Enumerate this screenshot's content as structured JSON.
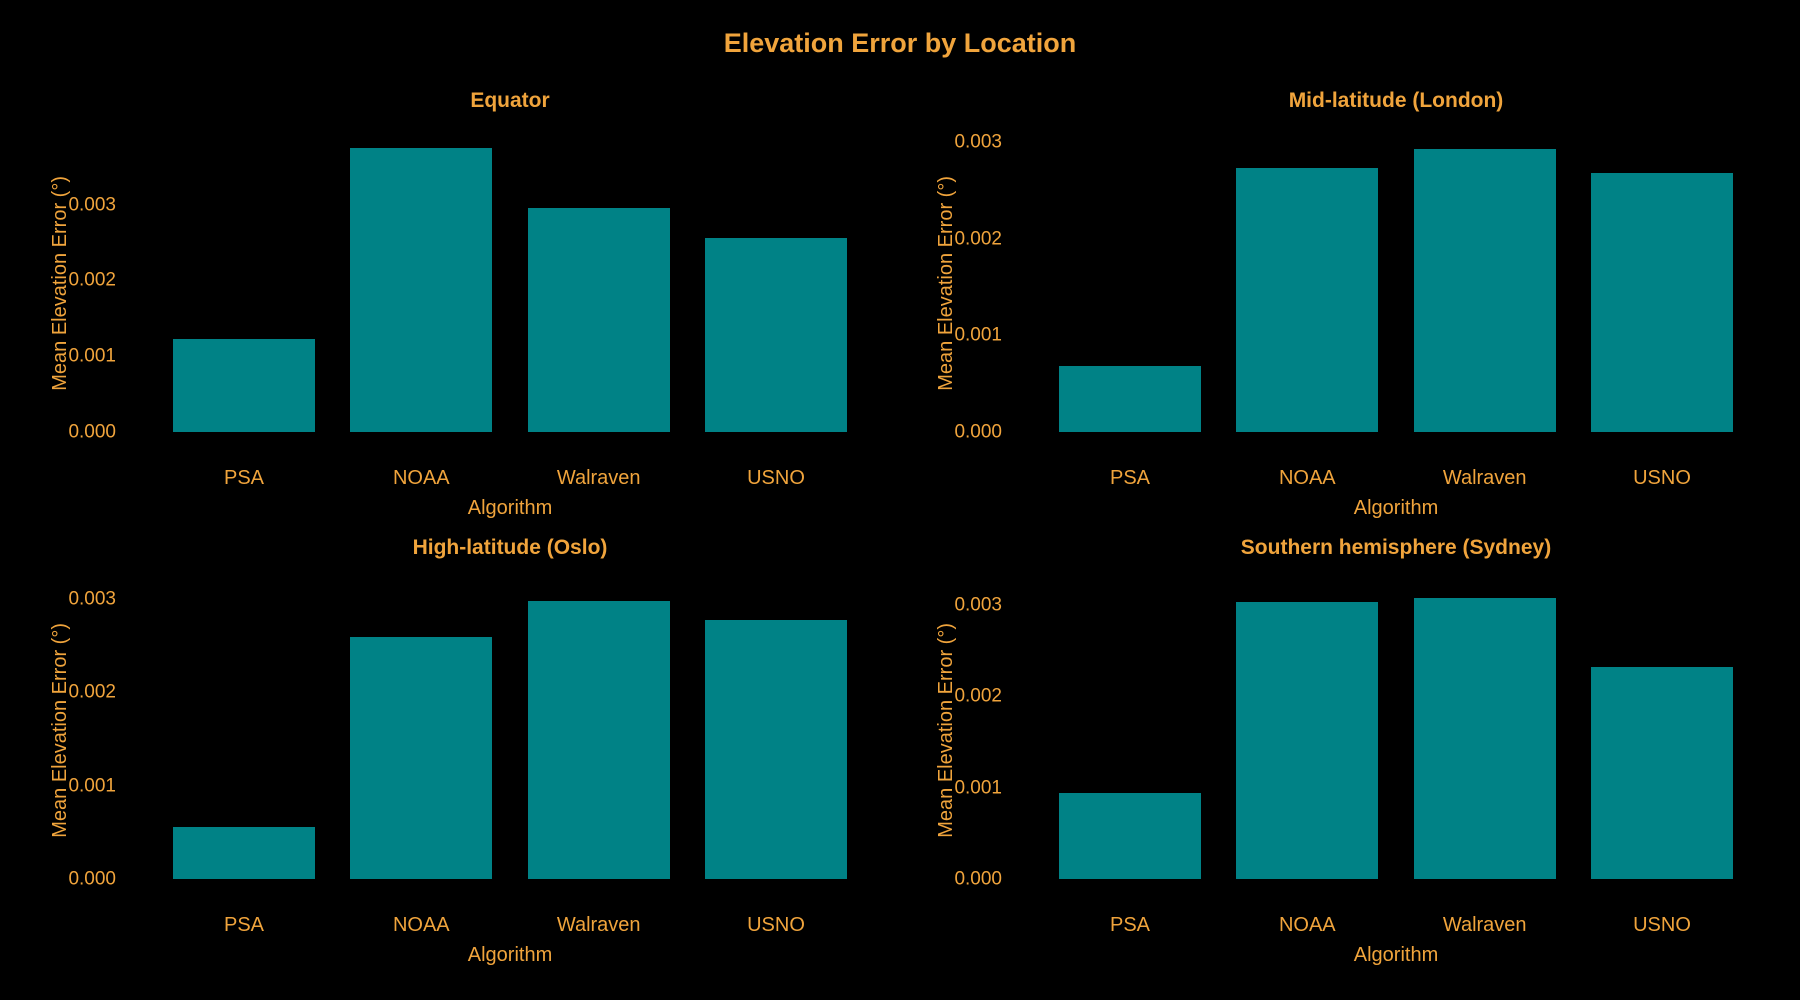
{
  "figure": {
    "title": "Elevation Error by Location"
  },
  "colors": {
    "background": "#000000",
    "text": "#F0A43C",
    "bar": "#008286"
  },
  "chart_data": [
    {
      "type": "bar",
      "title": "Equator",
      "row": 0,
      "col": 0,
      "categories": [
        "PSA",
        "NOAA",
        "Walraven",
        "USNO"
      ],
      "values": [
        0.00123,
        0.00375,
        0.00296,
        0.00256
      ],
      "xlabel": "Algorithm",
      "ylabel": "Mean Elevation Error (°)",
      "ytick_labels": [
        "0.000",
        "0.001",
        "0.002",
        "0.003"
      ],
      "ytick_values": [
        0,
        0.001,
        0.002,
        0.003
      ],
      "ylim": [
        0,
        0.00392
      ],
      "grid": false,
      "legend": "none"
    },
    {
      "type": "bar",
      "title": "Mid-latitude (London)",
      "row": 0,
      "col": 1,
      "categories": [
        "PSA",
        "NOAA",
        "Walraven",
        "USNO"
      ],
      "values": [
        0.00068,
        0.00273,
        0.00293,
        0.00268
      ],
      "xlabel": "Algorithm",
      "ylabel": "Mean Elevation Error (°)",
      "ytick_labels": [
        "0.000",
        "0.001",
        "0.002",
        "0.003"
      ],
      "ytick_values": [
        0,
        0.001,
        0.002,
        0.003
      ],
      "ylim": [
        0,
        0.00307
      ],
      "grid": false,
      "legend": "none"
    },
    {
      "type": "bar",
      "title": "High-latitude (Oslo)",
      "row": 1,
      "col": 0,
      "categories": [
        "PSA",
        "NOAA",
        "Walraven",
        "USNO"
      ],
      "values": [
        0.00056,
        0.00259,
        0.00298,
        0.00277
      ],
      "xlabel": "Algorithm",
      "ylabel": "Mean Elevation Error (°)",
      "ytick_labels": [
        "0.000",
        "0.001",
        "0.002",
        "0.003"
      ],
      "ytick_values": [
        0,
        0.001,
        0.002,
        0.003
      ],
      "ylim": [
        0,
        0.00318
      ],
      "grid": false,
      "legend": "none"
    },
    {
      "type": "bar",
      "title": "Southern hemisphere (Sydney)",
      "row": 1,
      "col": 1,
      "categories": [
        "PSA",
        "NOAA",
        "Walraven",
        "USNO"
      ],
      "values": [
        0.00094,
        0.00303,
        0.00307,
        0.00232
      ],
      "xlabel": "Algorithm",
      "ylabel": "Mean Elevation Error (°)",
      "ytick_labels": [
        "0.000",
        "0.001",
        "0.002",
        "0.003"
      ],
      "ytick_values": [
        0,
        0.001,
        0.002,
        0.003
      ],
      "ylim": [
        0,
        0.00325
      ],
      "grid": false,
      "legend": "none"
    }
  ]
}
